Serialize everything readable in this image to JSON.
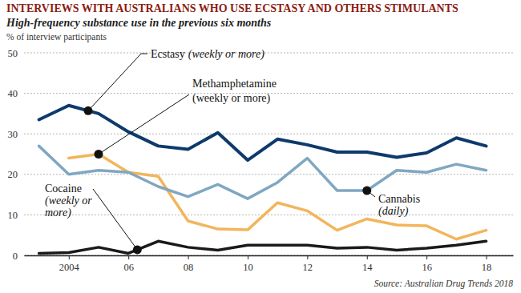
{
  "chart_data": {
    "type": "line",
    "title": "INTERVIEWS WITH AUSTRALIANS WHO USE ECSTASY AND OTHERS STIMULANTS",
    "subtitle": "High-frequency substance use in the previous six months",
    "y_label": "% of interview participants",
    "source": "Source: Australian Drug Trends 2018",
    "x": [
      2003,
      2004,
      2005,
      2006,
      2007,
      2008,
      2009,
      2010,
      2011,
      2012,
      2013,
      2014,
      2015,
      2016,
      2017,
      2018
    ],
    "xlim": [
      2002.5,
      2018.9
    ],
    "xticks": [
      2004,
      {
        "value": 2006,
        "label": "06"
      },
      {
        "value": 2008,
        "label": "08"
      },
      {
        "value": 2010,
        "label": "10"
      },
      {
        "value": 2012,
        "label": "12"
      },
      {
        "value": 2014,
        "label": "14"
      },
      {
        "value": 2016,
        "label": "16"
      },
      {
        "value": 2018,
        "label": "18"
      }
    ],
    "ylim": [
      0,
      50
    ],
    "yticks": [
      0,
      10,
      20,
      30,
      40,
      50
    ],
    "grid": true,
    "series": [
      {
        "name": "Ecstasy",
        "note": [
          "(weekly or more)"
        ],
        "color": "#0e3a6c",
        "values": [
          33.5,
          37,
          35,
          30.5,
          27,
          26.2,
          30.3,
          23.5,
          28.7,
          27.3,
          25.5,
          25.5,
          24.2,
          25.3,
          29,
          27
        ]
      },
      {
        "name": "Methamphetamine",
        "note": [
          "(weekly or more)"
        ],
        "color": "#f3b55c",
        "values": [
          null,
          24,
          25,
          20.5,
          19.5,
          8.5,
          6.5,
          6.3,
          13,
          11,
          6.2,
          9,
          7.5,
          7.3,
          4,
          6.2
        ]
      },
      {
        "name": "Cannabis",
        "note": [
          "(daily)"
        ],
        "color": "#80a7c2",
        "values": [
          27,
          20,
          21,
          20.5,
          17,
          14.5,
          17.5,
          14,
          18,
          24,
          16,
          16,
          21,
          20.5,
          22.5,
          21
        ]
      },
      {
        "name": "Cocaine",
        "note": [
          "(weekly or",
          "more)"
        ],
        "color": "#1a1a1a",
        "values": [
          0.5,
          0.7,
          2,
          0.5,
          3.5,
          2,
          1.3,
          2.5,
          2.5,
          2.5,
          1.8,
          2,
          1.3,
          1.8,
          2.5,
          3.5
        ]
      }
    ]
  }
}
